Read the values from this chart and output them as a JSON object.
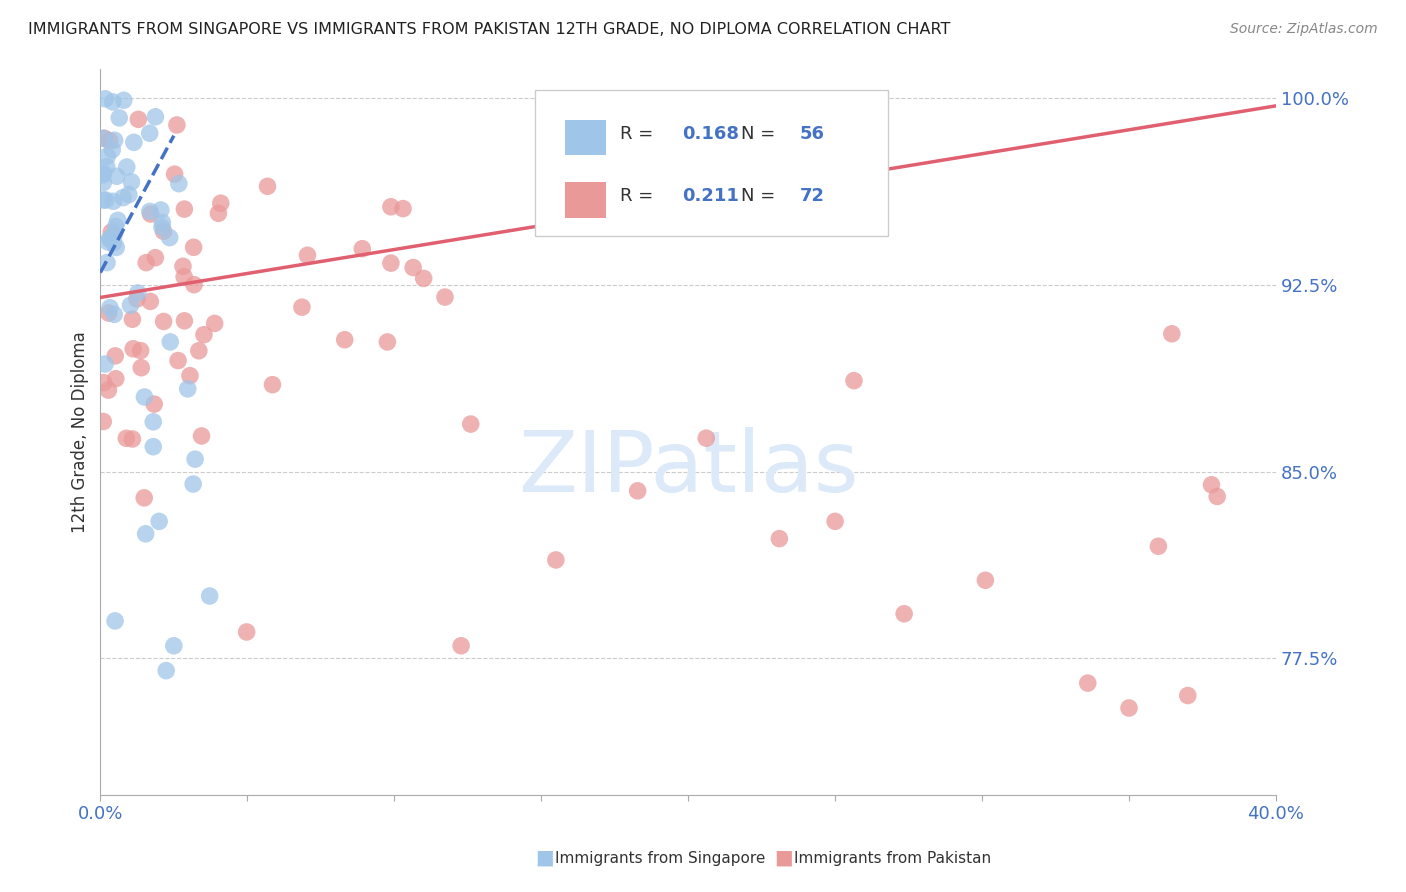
{
  "title": "IMMIGRANTS FROM SINGAPORE VS IMMIGRANTS FROM PAKISTAN 12TH GRADE, NO DIPLOMA CORRELATION CHART",
  "source": "Source: ZipAtlas.com",
  "ylabel": "12th Grade, No Diploma",
  "legend_singapore": "Immigrants from Singapore",
  "legend_pakistan": "Immigrants from Pakistan",
  "R_singapore": "0.168",
  "N_singapore": "56",
  "R_pakistan": "0.211",
  "N_pakistan": "72",
  "color_singapore": "#9fc5e8",
  "color_pakistan": "#ea9999",
  "color_trendline_singapore": "#4472c4",
  "color_trendline_pakistan": "#e06070",
  "xlim": [
    0.0,
    0.4
  ],
  "ylim": [
    0.72,
    1.012
  ],
  "y_ticks": [
    0.775,
    0.85,
    0.925,
    1.0
  ],
  "watermark_color": "#dce9f8",
  "bg_color": "#ffffff"
}
